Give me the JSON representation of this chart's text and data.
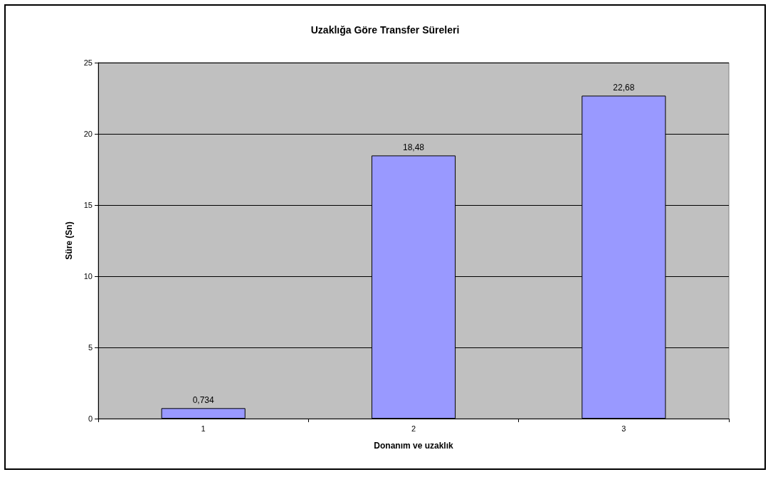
{
  "chart_data": {
    "type": "bar",
    "title": "Uzaklığa Göre Transfer Süreleri",
    "xlabel": "Donanım ve uzaklık",
    "ylabel": "Süre (Sn)",
    "categories": [
      "1",
      "2",
      "3"
    ],
    "values": [
      0.734,
      18.48,
      22.68
    ],
    "value_labels": [
      "0,734",
      "18,48",
      "22,68"
    ],
    "color": "#9999ff",
    "ylim": [
      0,
      25
    ],
    "yticks": [
      0,
      5,
      10,
      15,
      20,
      25
    ],
    "grid": "y"
  }
}
